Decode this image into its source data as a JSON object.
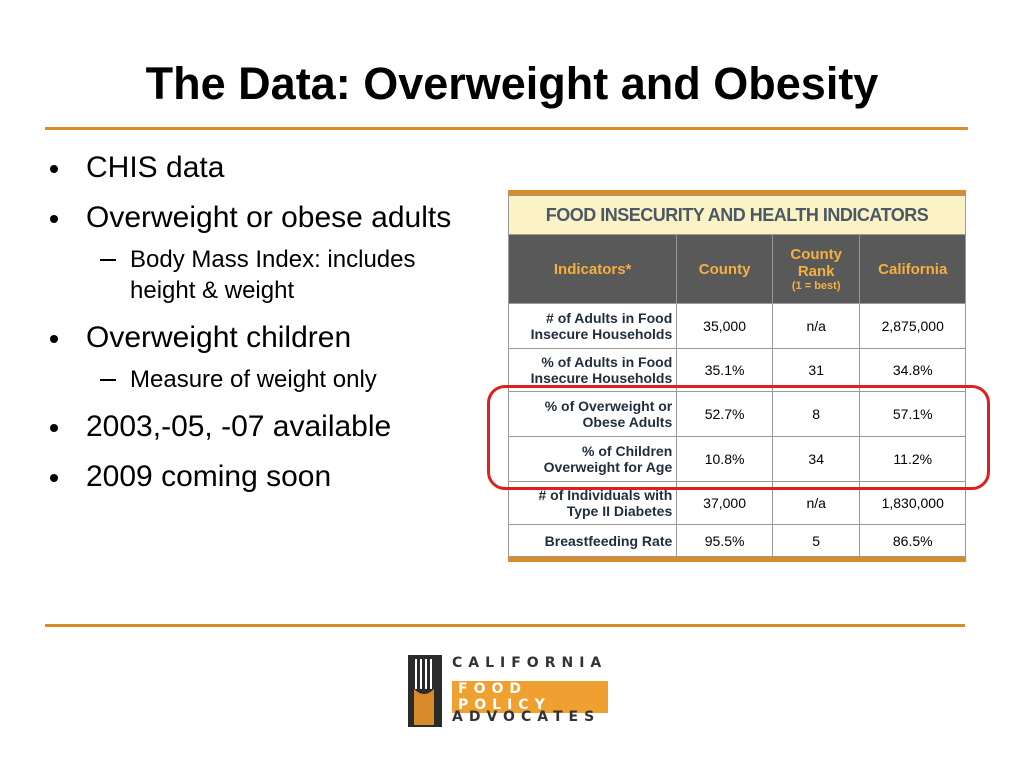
{
  "title": "The Data: Overweight and Obesity",
  "bullets": [
    {
      "level": 1,
      "text": "CHIS data"
    },
    {
      "level": 1,
      "text": "Overweight or obese adults"
    },
    {
      "level": 2,
      "text": "Body Mass Index: includes height & weight"
    },
    {
      "level": 1,
      "text": "Overweight children"
    },
    {
      "level": 2,
      "text": "Measure of weight only"
    },
    {
      "level": 1,
      "text": "2003,-05, -07 available"
    },
    {
      "level": 1,
      "text": "2009 coming soon"
    }
  ],
  "table": {
    "title": "FOOD INSECURITY AND HEALTH INDICATORS",
    "headers": [
      "Indicators*",
      "County",
      "County Rank",
      "California"
    ],
    "rank_note": "(1 = best)",
    "rows": [
      [
        "# of Adults in Food Insecure Households",
        "35,000",
        "n/a",
        "2,875,000"
      ],
      [
        "% of Adults in Food Insecure Households",
        "35.1%",
        "31",
        "34.8%"
      ],
      [
        "% of Overweight or Obese Adults",
        "52.7%",
        "8",
        "57.1%"
      ],
      [
        "% of Children Overweight for Age",
        "10.8%",
        "34",
        "11.2%"
      ],
      [
        "# of Individuals with Type II Diabetes",
        "37,000",
        "n/a",
        "1,830,000"
      ],
      [
        "Breastfeeding Rate",
        "95.5%",
        "5",
        "86.5%"
      ]
    ]
  },
  "logo": [
    "CALIFORNIA",
    "FOOD POLICY",
    "ADVOCATES"
  ]
}
